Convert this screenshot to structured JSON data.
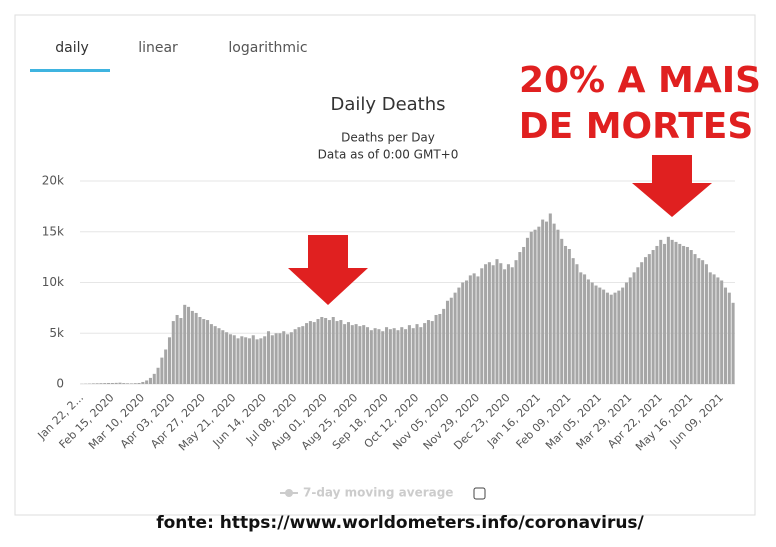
{
  "tabs": [
    "daily",
    "linear",
    "logarithmic"
  ],
  "annotation": [
    "20% A MAIS",
    "DE MORTES"
  ],
  "caption": "fonte: https://www.worldometers.info/coronavirus/",
  "chart_data": {
    "type": "bar",
    "title": "Daily Deaths",
    "subtitle": [
      "Deaths per Day",
      "Data as of 0:00 GMT+0"
    ],
    "legend": "7-day moving average",
    "color": "#a6a6a6",
    "grid": true,
    "ylim": [
      0,
      20000
    ],
    "yticks": [
      0,
      {
        "value": 5000,
        "label": "5k"
      },
      {
        "value": 10000,
        "label": "10k"
      },
      {
        "value": 15000,
        "label": "15k"
      },
      {
        "value": 20000,
        "label": "20k"
      }
    ],
    "categories": [
      "Jan 22, 2...",
      null,
      null,
      null,
      null,
      null,
      null,
      null,
      "Feb 15, 2020",
      null,
      null,
      null,
      null,
      null,
      null,
      null,
      "Mar 10, 2020",
      null,
      null,
      null,
      null,
      null,
      null,
      null,
      "Apr 03, 2020",
      null,
      null,
      null,
      null,
      null,
      null,
      null,
      "Apr 27, 2020",
      null,
      null,
      null,
      null,
      null,
      null,
      null,
      "May 21, 2020",
      null,
      null,
      null,
      null,
      null,
      null,
      null,
      "Jun 14, 2020",
      null,
      null,
      null,
      null,
      null,
      null,
      null,
      "Jul 08, 2020",
      null,
      null,
      null,
      null,
      null,
      null,
      null,
      "Aug 01, 2020",
      null,
      null,
      null,
      null,
      null,
      null,
      null,
      "Aug 25, 2020",
      null,
      null,
      null,
      null,
      null,
      null,
      null,
      "Sep 18, 2020",
      null,
      null,
      null,
      null,
      null,
      null,
      null,
      "Oct 12, 2020",
      null,
      null,
      null,
      null,
      null,
      null,
      null,
      "Nov 05, 2020",
      null,
      null,
      null,
      null,
      null,
      null,
      null,
      "Nov 29, 2020",
      null,
      null,
      null,
      null,
      null,
      null,
      null,
      "Dec 23, 2020",
      null,
      null,
      null,
      null,
      null,
      null,
      null,
      "Jan 16, 2021",
      null,
      null,
      null,
      null,
      null,
      null,
      null,
      "Feb 09, 2021",
      null,
      null,
      null,
      null,
      null,
      null,
      null,
      "Mar 05, 2021",
      null,
      null,
      null,
      null,
      null,
      null,
      null,
      "Mar 29, 2021",
      null,
      null,
      null,
      null,
      null,
      null,
      null,
      "Apr 22, 2021",
      null,
      null,
      null,
      null,
      null,
      null,
      null,
      "May 16, 2021",
      null,
      null,
      null,
      null,
      null,
      null,
      null,
      "Jun 09, 2021",
      null,
      null,
      null
    ],
    "values": [
      20,
      30,
      40,
      60,
      70,
      80,
      90,
      100,
      100,
      110,
      130,
      90,
      70,
      60,
      80,
      100,
      200,
      350,
      600,
      1000,
      1600,
      2600,
      3400,
      4600,
      6200,
      6800,
      6500,
      7800,
      7600,
      7200,
      7000,
      6600,
      6400,
      6300,
      5900,
      5700,
      5500,
      5300,
      5100,
      4900,
      4800,
      4500,
      4700,
      4600,
      4500,
      4800,
      4400,
      4500,
      4700,
      5200,
      4800,
      5000,
      5000,
      5200,
      4900,
      5100,
      5400,
      5600,
      5700,
      6000,
      6200,
      6100,
      6400,
      6600,
      6500,
      6300,
      6600,
      6200,
      6300,
      5900,
      6100,
      5800,
      5900,
      5700,
      5800,
      5600,
      5300,
      5500,
      5400,
      5200,
      5600,
      5400,
      5500,
      5300,
      5600,
      5400,
      5800,
      5500,
      5900,
      5600,
      6000,
      6300,
      6200,
      6800,
      6900,
      7400,
      8200,
      8500,
      9000,
      9500,
      10000,
      10200,
      10700,
      10900,
      10600,
      11400,
      11800,
      12000,
      11700,
      12300,
      11900,
      11300,
      11800,
      11500,
      12200,
      13000,
      13500,
      14400,
      15000,
      15200,
      15500,
      16200,
      16000,
      16800,
      15800,
      15200,
      14300,
      13600,
      13300,
      12400,
      11800,
      11000,
      10800,
      10300,
      10000,
      9700,
      9500,
      9300,
      9000,
      8800,
      9000,
      9200,
      9500,
      10000,
      10500,
      11000,
      11500,
      12000,
      12500,
      12800,
      13200,
      13600,
      14200,
      13800,
      14500,
      14200,
      14000,
      13800,
      13600,
      13500,
      13200,
      12800,
      12400,
      12200,
      11800,
      11000,
      10800,
      10500,
      10200,
      9500,
      9000,
      8000
    ]
  }
}
